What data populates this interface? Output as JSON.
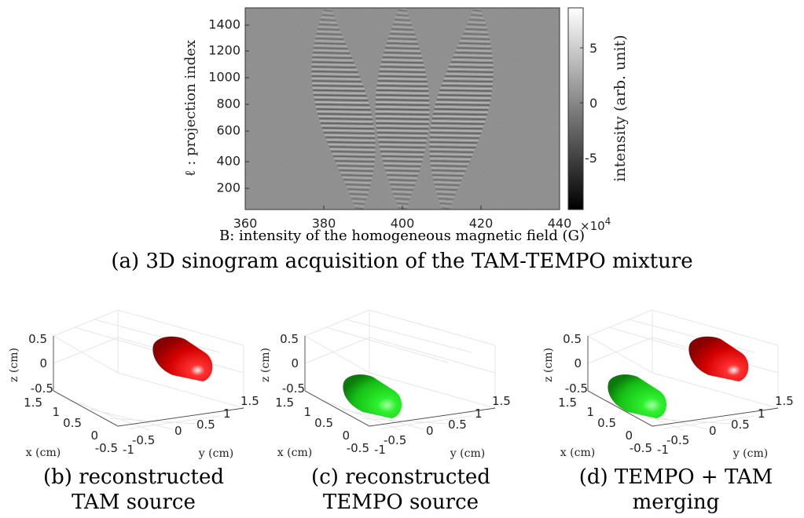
{
  "top_figure": {
    "ylabel": "ℓ : projection index",
    "xlabel": "B: intensity of the homogeneous magnetic field (G)",
    "x_ticks": [
      "360",
      "380",
      "400",
      "420",
      "440"
    ],
    "y_ticks": [
      "200",
      "400",
      "600",
      "800",
      "1000",
      "1200",
      "1400"
    ],
    "colorbar_label": "intensity (arb. unit)",
    "colorbar_ticks": [
      "5",
      "0",
      "-5"
    ],
    "colorbar_exponent_base": "×10",
    "colorbar_exponent_power": "4",
    "caption": "(a) 3D sinogram acquisition of the TAM-TEMPO mixture"
  },
  "chart_data": [
    {
      "type": "heatmap",
      "title": "",
      "xlabel": "B: intensity of the homogeneous magnetic field (G)",
      "ylabel": "ℓ : projection index",
      "xlim": [
        360,
        440
      ],
      "ylim": [
        1,
        1520
      ],
      "x_ticks": [
        360,
        380,
        400,
        420,
        440
      ],
      "y_ticks": [
        200,
        400,
        600,
        800,
        1000,
        1200,
        1400
      ],
      "colorbar": {
        "label": "intensity (arb. unit)",
        "range": [
          -90000,
          80000
        ],
        "ticks": [
          5,
          0,
          -5
        ],
        "scale": "×10^4",
        "colormap": "gray"
      },
      "features": "three sinusoidal bands of oscillating striations centred near 385 G, 400 G and 415 G"
    }
  ],
  "bottom_panels": [
    {
      "caption_line1": "(b) reconstructed",
      "caption_line2": "TAM source",
      "z_label": "z (cm)",
      "x_label": "x (cm)",
      "y_label": "y (cm)",
      "z_ticks": [
        "0.5",
        "0",
        "-0.5"
      ],
      "x_ticks": [
        "1.5",
        "1",
        "0.5",
        "0",
        "-0.5"
      ],
      "y_ticks": [
        "-1",
        "-0.5",
        "0",
        "0.5",
        "1",
        "1.5"
      ],
      "objects": [
        {
          "name": "TAM",
          "color": "#e00000"
        }
      ]
    },
    {
      "caption_line1": "(c) reconstructed",
      "caption_line2": "TEMPO source",
      "z_label": "z (cm)",
      "x_label": "x (cm)",
      "y_label": "y (cm)",
      "z_ticks": [
        "0.5",
        "0",
        "-0.5"
      ],
      "x_ticks": [
        "1.5",
        "1",
        "0.5",
        "0",
        "-0.5"
      ],
      "y_ticks": [
        "-1",
        "-0.5",
        "0",
        "0.5",
        "1",
        "1.5"
      ],
      "objects": [
        {
          "name": "TEMPO",
          "color": "#1ed81e"
        }
      ]
    },
    {
      "caption_line1": "(d) TEMPO + TAM",
      "caption_line2": "merging",
      "z_label": "z (cm)",
      "x_label": "x (cm)",
      "y_label": "y (cm)",
      "z_ticks": [
        "0.5",
        "0",
        "-0.5"
      ],
      "x_ticks": [
        "1.5",
        "1",
        "0.5",
        "0",
        "-0.5"
      ],
      "y_ticks": [
        "-1",
        "-0.5",
        "0",
        "0.5",
        "1",
        "1.5"
      ],
      "objects": [
        {
          "name": "TEMPO",
          "color": "#1ed81e"
        },
        {
          "name": "TAM",
          "color": "#e00000"
        }
      ]
    }
  ]
}
